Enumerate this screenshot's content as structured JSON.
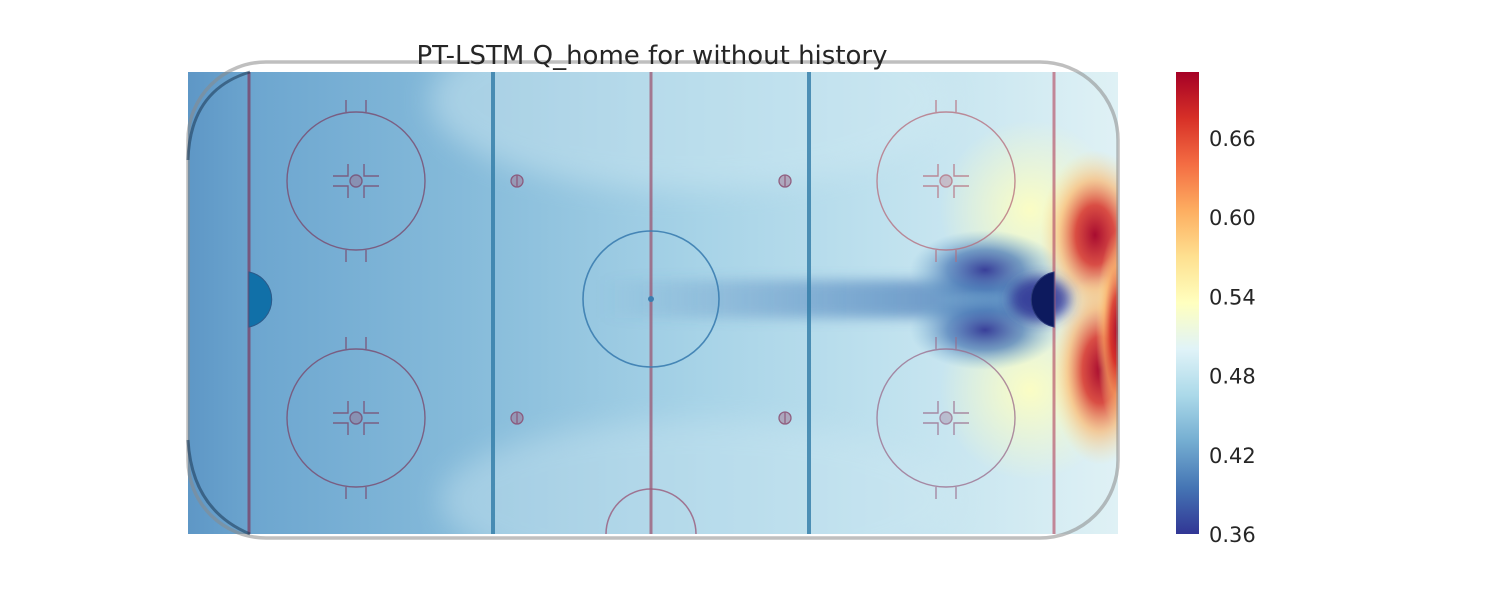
{
  "chart_data": {
    "type": "heatmap",
    "title": "PT-LSTM Q_home for  without history",
    "xlabel": "",
    "ylabel": "",
    "colorbar": {
      "ticks": [
        "0.36",
        "0.42",
        "0.48",
        "0.54",
        "0.60",
        "0.66"
      ],
      "range": [
        0.36,
        0.71
      ],
      "colormap": "RdYlBu_r",
      "position": "right"
    },
    "background": "hockey rink",
    "values": {
      "defensive_zone_far_left": 0.39,
      "defensive_zone": 0.43,
      "neutral_zone": 0.47,
      "center_slot_corridor": 0.42,
      "offensive_blue_line_zone": 0.48,
      "in_front_of_net": 0.36,
      "beside_net_dark_blue_lobes": 0.37,
      "behind_goal_line_edges": 0.71,
      "offensive_corners": 0.56
    }
  }
}
